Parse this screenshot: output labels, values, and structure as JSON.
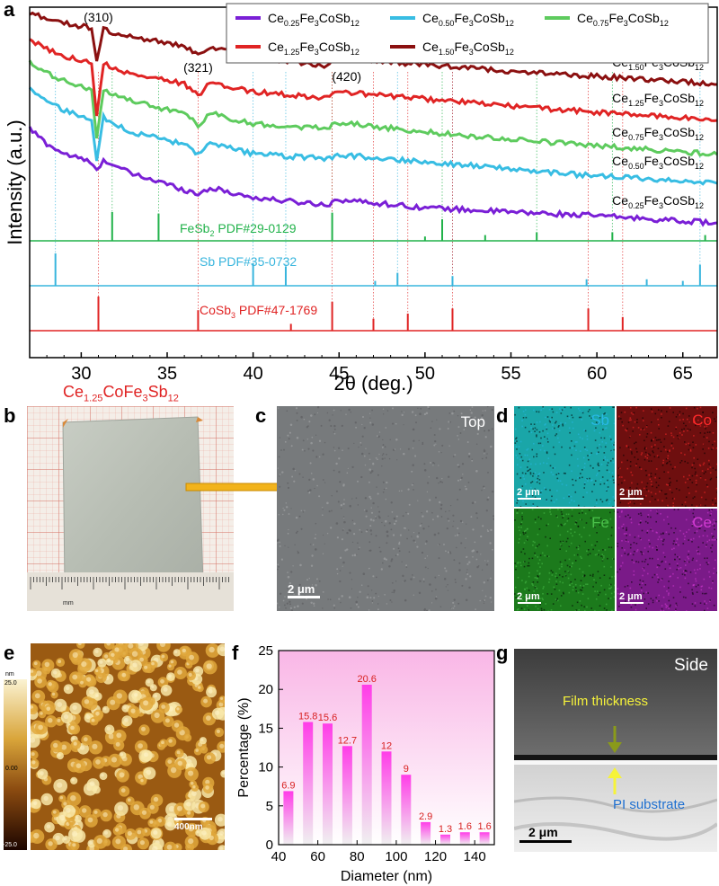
{
  "panel_labels": {
    "a": "a",
    "b": "b",
    "c": "c",
    "d": "d",
    "e": "e",
    "f": "f",
    "g": "g"
  },
  "chart_data": [
    {
      "type": "line",
      "xlabel": "2θ (deg.)",
      "ylabel": "Intensity (a.u.)",
      "xlim": [
        27,
        67
      ],
      "xticks": [
        30,
        35,
        40,
        45,
        50,
        55,
        60,
        65
      ],
      "peak_labels": [
        {
          "text": "(310)",
          "x": 31.0
        },
        {
          "text": "(321)",
          "x": 36.8
        },
        {
          "text": "(420)",
          "x": 44.5
        }
      ],
      "legend": [
        "Ce0.25Fe3CoSb12",
        "Ce0.50Fe3CoSb12",
        "Ce0.75Fe3CoSb12",
        "Ce1.25Fe3CoSb12",
        "Ce1.50Fe3CoSb12"
      ],
      "series": [
        {
          "name": "Ce0.25Fe3CoSb12",
          "label": [
            "Ce",
            "0.25",
            "Fe",
            "3",
            "CoSb",
            "12"
          ],
          "color": "#7a1fd6",
          "x": [
            27.0,
            28.0,
            29.0,
            30.0,
            30.5,
            30.9,
            31.3,
            32.0,
            33.0,
            34.5,
            36.0,
            36.8,
            37.5,
            40.0,
            44.3,
            44.9,
            50.0,
            55.0,
            60.0,
            65.0,
            67.0
          ],
          "y": [
            12.5,
            10.8,
            9.7,
            9.1,
            8.8,
            7.7,
            9.1,
            8.3,
            7.4,
            6.6,
            5.7,
            5.2,
            5.9,
            4.8,
            4.0,
            4.6,
            3.7,
            3.2,
            2.8,
            2.2,
            2.0
          ]
        },
        {
          "name": "Ce0.50Fe3CoSb12",
          "label": [
            "Ce",
            "0.50",
            "Fe",
            "3",
            "CoSb",
            "12"
          ],
          "color": "#38bde3",
          "x": [
            27.0,
            28.0,
            29.0,
            30.0,
            30.6,
            30.9,
            31.3,
            32.0,
            33.0,
            34.5,
            36.0,
            36.8,
            37.5,
            40.0,
            44.3,
            44.9,
            50.0,
            55.0,
            60.0,
            65.0,
            67.0
          ],
          "y": [
            17.1,
            15.5,
            14.5,
            13.8,
            13.4,
            8.9,
            13.8,
            12.9,
            12.1,
            11.4,
            10.7,
            9.5,
            10.8,
            9.7,
            9.1,
            9.6,
            8.8,
            8.0,
            7.2,
            6.7,
            6.4
          ]
        },
        {
          "name": "Ce0.75Fe3CoSb12",
          "label": [
            "Ce",
            "0.75",
            "Fe",
            "3",
            "CoSb",
            "12"
          ],
          "color": "#5ecb5e",
          "x": [
            27.0,
            28.0,
            29.0,
            30.0,
            30.6,
            30.9,
            31.3,
            32.0,
            33.0,
            34.5,
            36.0,
            36.8,
            37.5,
            40.0,
            44.3,
            44.9,
            50.0,
            55.0,
            60.0,
            65.0,
            67.0
          ],
          "y": [
            19.8,
            18.6,
            17.8,
            17.2,
            16.8,
            11.4,
            16.9,
            16.2,
            15.5,
            14.8,
            14.1,
            12.9,
            14.2,
            13.0,
            12.5,
            13.2,
            12.1,
            11.3,
            10.6,
            9.9,
            9.6
          ]
        },
        {
          "name": "Ce1.25Fe3CoSb12",
          "label": [
            "Ce",
            "1.25",
            "Fe",
            "3",
            "CoSb",
            "12"
          ],
          "color": "#e02424",
          "x": [
            27.0,
            28.0,
            29.0,
            30.0,
            30.6,
            30.9,
            31.3,
            32.0,
            33.0,
            34.5,
            36.0,
            36.8,
            37.5,
            40.0,
            44.3,
            44.9,
            50.0,
            55.0,
            60.0,
            65.0,
            67.0
          ],
          "y": [
            22.4,
            21.3,
            20.6,
            20.1,
            19.7,
            13.9,
            19.8,
            19.1,
            18.5,
            18.1,
            17.4,
            16.2,
            17.5,
            16.6,
            15.9,
            16.6,
            15.8,
            15.0,
            14.3,
            13.7,
            13.4
          ]
        },
        {
          "name": "Ce1.50Fe3CoSb12",
          "label": [
            "Ce",
            "1.50",
            "Fe",
            "3",
            "CoSb",
            "12"
          ],
          "color": "#8b1010",
          "x": [
            27.0,
            28.0,
            29.0,
            30.0,
            30.6,
            30.9,
            31.3,
            32.0,
            33.0,
            34.5,
            36.0,
            36.8,
            37.5,
            40.0,
            44.3,
            44.9,
            50.0,
            55.0,
            60.0,
            65.0,
            67.0
          ],
          "y": [
            25.4,
            24.8,
            24.2,
            23.9,
            23.6,
            20.0,
            23.5,
            23.0,
            22.6,
            22.2,
            21.6,
            20.6,
            21.5,
            20.5,
            19.5,
            20.4,
            19.6,
            18.9,
            18.3,
            17.7,
            17.4
          ]
        }
      ],
      "references": [
        {
          "name": "FeSb2 PDF#29-0129",
          "label": [
            "FeSb",
            "2",
            " PDF#29-0129"
          ],
          "color": "#21b24a",
          "peaks": [
            {
              "x": 31.8,
              "h": 1.0
            },
            {
              "x": 34.5,
              "h": 0.95
            },
            {
              "x": 44.6,
              "h": 0.98
            },
            {
              "x": 50.0,
              "h": 0.15
            },
            {
              "x": 51.0,
              "h": 0.75
            },
            {
              "x": 53.5,
              "h": 0.2
            },
            {
              "x": 56.5,
              "h": 0.3
            },
            {
              "x": 60.9,
              "h": 0.3
            },
            {
              "x": 66.3,
              "h": 0.2
            }
          ]
        },
        {
          "name": "Sb PDF#35-0732",
          "label": [
            "Sb PDF#35-0732"
          ],
          "color": "#38b5dd",
          "peaks": [
            {
              "x": 28.5,
              "h": 1.0
            },
            {
              "x": 40.0,
              "h": 0.7
            },
            {
              "x": 41.9,
              "h": 0.6
            },
            {
              "x": 47.1,
              "h": 0.15
            },
            {
              "x": 48.4,
              "h": 0.4
            },
            {
              "x": 51.6,
              "h": 0.3
            },
            {
              "x": 59.4,
              "h": 0.2
            },
            {
              "x": 62.9,
              "h": 0.2
            },
            {
              "x": 65.0,
              "h": 0.15
            },
            {
              "x": 66.0,
              "h": 0.65
            }
          ]
        },
        {
          "name": "CoSb3 PDF#47-1769",
          "label": [
            "CoSb",
            "3",
            " PDF#47-1769"
          ],
          "color": "#e02424",
          "peaks": [
            {
              "x": 31.0,
              "h": 1.0
            },
            {
              "x": 36.8,
              "h": 0.6
            },
            {
              "x": 42.2,
              "h": 0.2
            },
            {
              "x": 44.6,
              "h": 0.85
            },
            {
              "x": 47.0,
              "h": 0.35
            },
            {
              "x": 49.0,
              "h": 0.5
            },
            {
              "x": 51.6,
              "h": 0.65
            },
            {
              "x": 59.5,
              "h": 0.65
            },
            {
              "x": 61.5,
              "h": 0.4
            }
          ]
        }
      ]
    },
    {
      "type": "bar",
      "xlabel": "Diameter (nm)",
      "ylabel": "Percentage (%)",
      "xlim": [
        40,
        150
      ],
      "ylim": [
        0,
        25
      ],
      "xticks": [
        40,
        60,
        80,
        100,
        120,
        140
      ],
      "yticks": [
        0,
        5,
        10,
        15,
        20,
        25
      ],
      "categories": [
        45,
        55,
        65,
        75,
        85,
        95,
        105,
        115,
        125,
        135,
        145
      ],
      "values": [
        6.9,
        15.8,
        15.6,
        12.7,
        20.6,
        12,
        9,
        2.9,
        1.3,
        1.6,
        1.6
      ],
      "value_labels": [
        "6.9",
        "15.8",
        "15.6",
        "12.7",
        "20.6",
        "12",
        "9",
        "2.9",
        "1.3",
        "1.6",
        "1.6"
      ]
    }
  ],
  "panel_b": {
    "title_parts": [
      "Ce",
      "1.25",
      "CoFe",
      "3",
      "Sb",
      "12"
    ],
    "ruler_unit": "mm"
  },
  "panel_c": {
    "corner": "Top",
    "scale": "2 μm"
  },
  "panel_d": {
    "maps": [
      {
        "element": "Sb",
        "bg": "#1aa6a8",
        "fg": "#28b8e6",
        "scale": "2 μm"
      },
      {
        "element": "Co",
        "bg": "#6e0f0f",
        "fg": "#ff2a2a",
        "scale": "2 μm"
      },
      {
        "element": "Fe",
        "bg": "#1c7a1c",
        "fg": "#4ac04a",
        "scale": "2 μm"
      },
      {
        "element": "Ce",
        "bg": "#7a1a88",
        "fg": "#d23bd2",
        "scale": "2 μm"
      }
    ]
  },
  "panel_e": {
    "colorbar_unit": "nm",
    "colorbar_max": "25.0",
    "colorbar_mid": "0.00",
    "colorbar_min": "-25.0",
    "scale": "400nm"
  },
  "panel_g": {
    "corner": "Side",
    "film_label": "Film thickness",
    "substrate_label": "PI substrate",
    "scale": "2 μm"
  }
}
